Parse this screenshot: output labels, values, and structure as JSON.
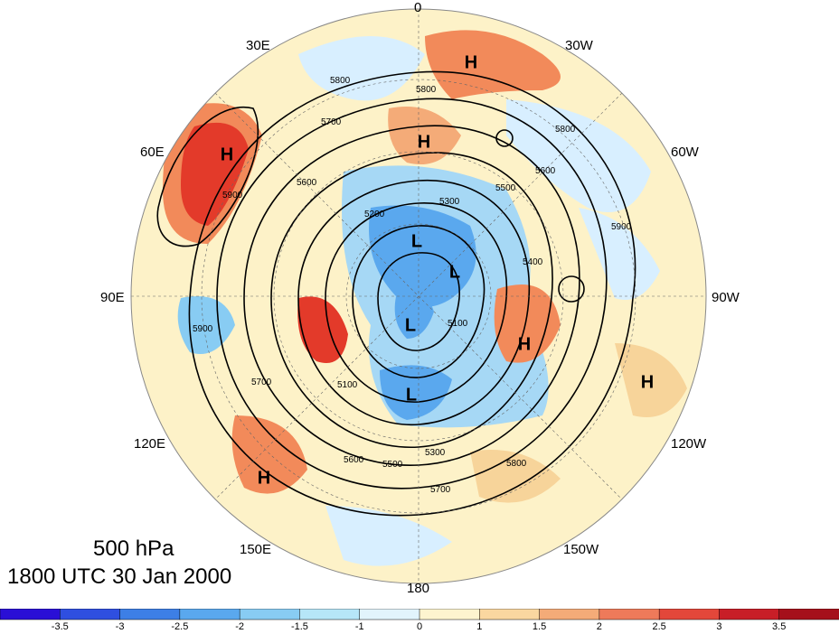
{
  "map": {
    "projection": "north polar stereographic",
    "level_text": "500 hPa",
    "time_text": "1800 UTC 30 Jan 2000",
    "longitude_labels": [
      "0",
      "30W",
      "60W",
      "90W",
      "120W",
      "150W",
      "180",
      "150E",
      "120E",
      "90E",
      "60E",
      "30E"
    ],
    "contour_labels": [
      "5800",
      "5800",
      "5700",
      "5600",
      "5500",
      "5300",
      "5200",
      "5100",
      "5100",
      "5300",
      "5500",
      "5600",
      "5700",
      "5800",
      "5900",
      "5900",
      "5700",
      "5600",
      "5800",
      "5900",
      "5400"
    ],
    "high_markers": [
      "H",
      "H",
      "H",
      "H",
      "H",
      "H"
    ],
    "low_markers": [
      "L",
      "L",
      "L",
      "L"
    ],
    "colors": {
      "deep_blue": "#2a0fd6",
      "blue": "#3d7fe6",
      "light_blue": "#a6d8f5",
      "pale_blue": "#d8efff",
      "cream": "#fdf2c8",
      "tan": "#f7d49a",
      "orange": "#f28a5a",
      "red": "#e33a2a",
      "dark_red": "#a5101b"
    }
  },
  "colorbar": {
    "tick_labels": [
      "-3.5",
      "-3",
      "-2.5",
      "-2",
      "-1.5",
      "-1",
      "0",
      "1",
      "1.5",
      "2",
      "2.5",
      "3",
      "3.5"
    ],
    "colors": [
      "#2a0fd6",
      "#2f4fe0",
      "#3d7fe6",
      "#5aa8ee",
      "#88ccf3",
      "#b6e6f8",
      "#e2f4fc",
      "#fdf4cf",
      "#fad7a0",
      "#f4ab78",
      "#ee7a5a",
      "#e3473a",
      "#c81e27",
      "#a5101b"
    ]
  }
}
